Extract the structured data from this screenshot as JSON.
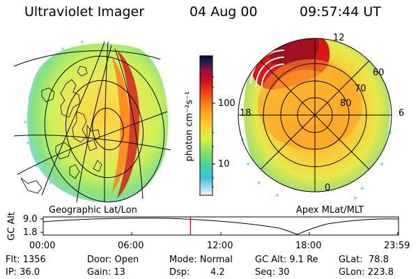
{
  "header": {
    "instrument": "Ultraviolet Imager",
    "date": "04 Aug 00",
    "time": "09:57:44 UT"
  },
  "colorbar": {
    "unit_label": "photon cm⁻²s⁻¹",
    "ticks": [
      "100",
      "10"
    ]
  },
  "left_panel": {
    "caption": "Geographic Lat/Lon"
  },
  "right_panel": {
    "caption": "Apex MLat/MLT",
    "mlt_labels": [
      "12",
      "18",
      "6",
      "0"
    ],
    "mlat_labels": [
      "60",
      "70",
      "80"
    ]
  },
  "altitude_plot": {
    "ylabel": "GC Alt",
    "y_ticks": [
      "9.0",
      "1.8"
    ],
    "x_ticks": [
      "00:00",
      "06:00",
      "12:00",
      "18:00",
      "23:59"
    ],
    "marker_time": "09:57:44",
    "marker_color": "#ff0000"
  },
  "info": {
    "flt": "Flt: 1356",
    "ip": "IP: 36.0",
    "door": "Door: Open",
    "gain": "Gain: 13",
    "mode": "Mode: Normal",
    "dsp_label": "Dsp:",
    "dsp_value": "4.2",
    "gc_alt": "GC Alt: 9.1 Re",
    "seq": "Seq: 30",
    "glat": "GLat:  78.8",
    "glon": "GLon: 223.8"
  }
}
